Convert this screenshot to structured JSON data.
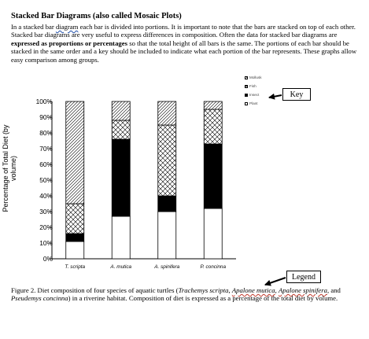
{
  "heading": "Stacked Bar Diagrams (also called Mosaic Plots)",
  "intro": {
    "p1": "In a stacked bar ",
    "p1_link": "diagram",
    "p2": " each bar is divided into portions. It is important to note that the bars are stacked on top of each other. Stacked bar diagrams are very useful to express differences in composition. Often the data for stacked bar diagrams are ",
    "p2_bold": "expressed as proportions or percentages",
    "p3": " so that the total height of all bars is the same. The portions of each bar should be stacked in the same order and a key should be included to indicate what each portion of the bar represents. These graphs allow easy comparison among groups."
  },
  "callouts": {
    "key": "Key",
    "legend": "Legend"
  },
  "chart_data": {
    "type": "bar",
    "stacked": true,
    "ylabel": "Percentage of Total Diet (by volume)",
    "ylim": [
      0,
      100
    ],
    "yticks": [
      "0%",
      "10%",
      "20%",
      "30%",
      "40%",
      "50%",
      "60%",
      "70%",
      "80%",
      "90%",
      "100%"
    ],
    "categories": [
      "T. scripta",
      "A. mutica",
      "A. spinifera",
      "P. concinna"
    ],
    "series": [
      {
        "name": "Plant",
        "pattern": "white",
        "values": [
          11,
          27,
          30,
          32
        ]
      },
      {
        "name": "Insect",
        "pattern": "black",
        "values": [
          5,
          49,
          10,
          41
        ]
      },
      {
        "name": "Fish",
        "pattern": "crosshatch",
        "values": [
          19,
          12,
          45,
          22
        ]
      },
      {
        "name": "Mollusk",
        "pattern": "diagonal",
        "values": [
          65,
          12,
          15,
          5
        ]
      }
    ],
    "legend_order": [
      "Mollusk",
      "Fish",
      "Insect",
      "Plant"
    ],
    "legend_position": "top-right"
  },
  "caption": {
    "c1": "Figure 2. Diet composition of four species of aquatic turtles (",
    "s1": "Trachemys scripta",
    "c2": ", ",
    "s2": "Apalone mutica",
    "c3": ", ",
    "s3": "Apalone spinifera",
    "c4": ", and ",
    "s4": "Pseudemys concinna",
    "c5": ") in a riverine habitat. Composition of diet is expressed as a percentage of the total diet by volume."
  }
}
